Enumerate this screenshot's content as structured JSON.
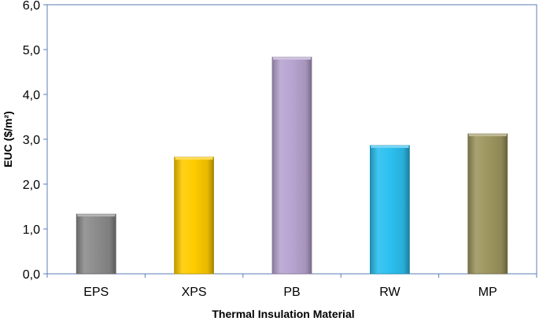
{
  "chart_data": {
    "type": "bar",
    "title": "",
    "xlabel": "Thermal Insulation Material",
    "ylabel": "EUC ($/m²)",
    "categories": [
      "EPS",
      "XPS",
      "PB",
      "RW",
      "MP"
    ],
    "values": [
      1.33,
      2.6,
      4.83,
      2.86,
      3.12
    ],
    "ylim": [
      0,
      6
    ],
    "yticks": [
      "0,0",
      "1,0",
      "2,0",
      "3,0",
      "4,0",
      "5,0",
      "6,0"
    ],
    "colors": [
      "#8c8c8c",
      "#ffcc00",
      "#b8a4d0",
      "#2cc0f0",
      "#9e9660"
    ],
    "grid": false,
    "legend": "none"
  }
}
